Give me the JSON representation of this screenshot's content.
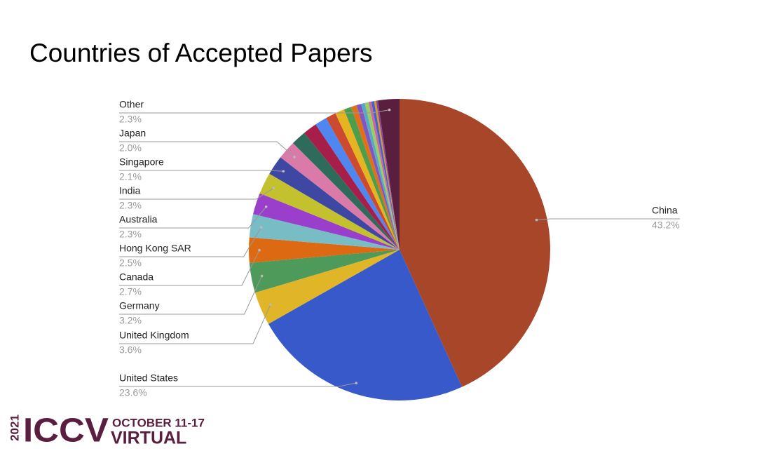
{
  "chart_data": {
    "type": "pie",
    "title": "Countries of Accepted Papers",
    "categories": [
      "China",
      "United States",
      "United Kingdom",
      "Germany",
      "Canada",
      "Hong Kong SAR",
      "Australia",
      "India",
      "Singapore",
      "Japan",
      null,
      null,
      null,
      null,
      null,
      null,
      null,
      null,
      null,
      null,
      null,
      null,
      null,
      null,
      "Other"
    ],
    "values": [
      43.2,
      23.6,
      3.6,
      3.2,
      2.7,
      2.5,
      2.3,
      2.3,
      2.1,
      2.0,
      1.6,
      1.5,
      1.3,
      1.1,
      1.0,
      0.8,
      0.6,
      0.5,
      0.4,
      0.4,
      0.3,
      0.3,
      0.2,
      0.2,
      2.3
    ],
    "value_labels": [
      "43.2%",
      "23.6%",
      "3.6%",
      "3.2%",
      "2.7%",
      "2.5%",
      "2.3%",
      "2.3%",
      "2.1%",
      "2.0%",
      null,
      null,
      null,
      null,
      null,
      null,
      null,
      null,
      null,
      null,
      null,
      null,
      null,
      null,
      "2.3%"
    ],
    "colors": [
      "#a8462a",
      "#3759c9",
      "#e0b527",
      "#4e9a5a",
      "#dd6a12",
      "#78bcc6",
      "#9a3fcc",
      "#c3c12e",
      "#3e48a3",
      "#d97aa8",
      "#2f6b5a",
      "#a51f4a",
      "#4f86f0",
      "#cc4a2f",
      "#e6b321",
      "#4d9d4d",
      "#e0701a",
      "#7e57c2",
      "#5ba8c4",
      "#9ccc65",
      "#c66a9e",
      "#4a5fcf",
      "#d4a017",
      "#8e44ad",
      "#5a1f3f"
    ]
  },
  "logo": {
    "year": "2021",
    "name": "ICCV",
    "dates": "OCTOBER 11-17",
    "mode": "VIRTUAL"
  }
}
